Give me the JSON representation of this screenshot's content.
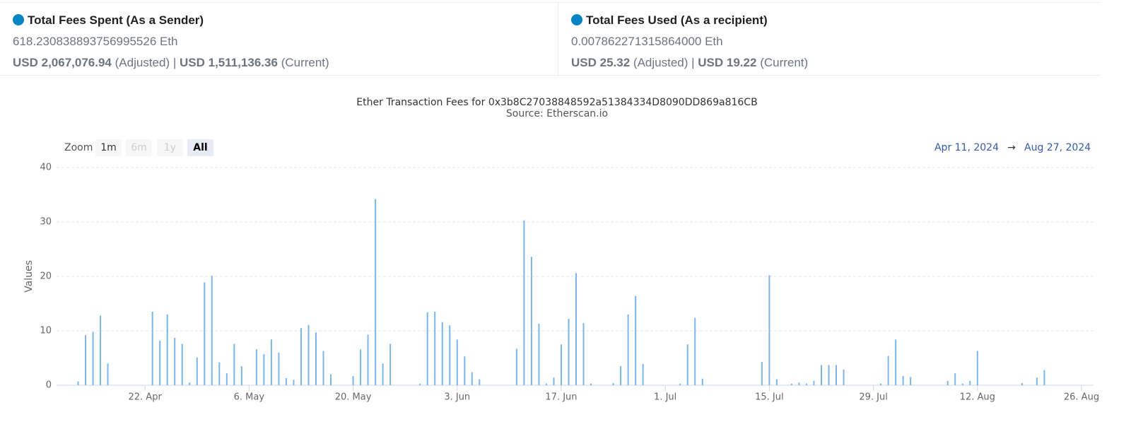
{
  "header": {
    "cards": [
      {
        "title": "Total Fees Spent (As a Sender)",
        "eth": "618.230838893756995526 Eth",
        "usd_adjusted": "USD 2,067,076.94",
        "adjusted_label": "(Adjusted)",
        "separator": "|",
        "usd_current": "USD 1,511,136.36",
        "current_label": "(Current)"
      },
      {
        "title": "Total Fees Used (As a recipient)",
        "eth": "0.007862271315864000 Eth",
        "usd_adjusted": "USD 25.32",
        "adjusted_label": "(Adjusted)",
        "separator": "|",
        "usd_current": "USD 19.22",
        "current_label": "(Current)"
      }
    ]
  },
  "controls": {
    "zoom_label": "Zoom",
    "buttons": [
      "1m",
      "6m",
      "1y",
      "All"
    ],
    "range_from": "Apr 11, 2024",
    "range_arrow": "→",
    "range_to": "Aug 27, 2024"
  },
  "chart_data": {
    "type": "bar",
    "title": "Ether Transaction Fees for 0x3b8C27038848592a51384334D8090DD869a816CB",
    "subtitle": "Source: Etherscan.io",
    "y_label": "Values",
    "color": "#7cb5ec",
    "grid": true,
    "x": [
      "2024-04-13",
      "2024-04-14",
      "2024-04-15",
      "2024-04-16",
      "2024-04-17",
      "2024-04-23",
      "2024-04-24",
      "2024-04-25",
      "2024-04-26",
      "2024-04-27",
      "2024-04-28",
      "2024-04-29",
      "2024-04-30",
      "2024-05-01",
      "2024-05-02",
      "2024-05-03",
      "2024-05-04",
      "2024-05-05",
      "2024-05-07",
      "2024-05-08",
      "2024-05-09",
      "2024-05-10",
      "2024-05-11",
      "2024-05-12",
      "2024-05-13",
      "2024-05-14",
      "2024-05-15",
      "2024-05-16",
      "2024-05-17",
      "2024-05-20",
      "2024-05-21",
      "2024-05-22",
      "2024-05-23",
      "2024-05-24",
      "2024-05-25",
      "2024-05-29",
      "2024-05-30",
      "2024-05-31",
      "2024-06-01",
      "2024-06-02",
      "2024-06-03",
      "2024-06-04",
      "2024-06-05",
      "2024-06-06",
      "2024-06-11",
      "2024-06-12",
      "2024-06-13",
      "2024-06-14",
      "2024-06-15",
      "2024-06-16",
      "2024-06-17",
      "2024-06-18",
      "2024-06-19",
      "2024-06-20",
      "2024-06-21",
      "2024-06-24",
      "2024-06-25",
      "2024-06-26",
      "2024-06-27",
      "2024-06-28",
      "2024-07-03",
      "2024-07-04",
      "2024-07-05",
      "2024-07-06",
      "2024-07-14",
      "2024-07-15",
      "2024-07-16",
      "2024-07-18",
      "2024-07-19",
      "2024-07-20",
      "2024-07-21",
      "2024-07-22",
      "2024-07-23",
      "2024-07-24",
      "2024-07-25",
      "2024-07-30",
      "2024-07-31",
      "2024-08-01",
      "2024-08-02",
      "2024-08-03",
      "2024-08-08",
      "2024-08-09",
      "2024-08-10",
      "2024-08-11",
      "2024-08-12",
      "2024-08-18",
      "2024-08-20",
      "2024-08-21"
    ],
    "values": [
      0.7,
      9.2,
      9.8,
      12.8,
      4.0,
      13.5,
      8.2,
      13.0,
      8.7,
      7.6,
      0.5,
      5.1,
      18.9,
      20.1,
      4.2,
      2.2,
      7.6,
      3.5,
      6.6,
      5.7,
      8.4,
      6.0,
      1.3,
      1.0,
      10.5,
      11.1,
      9.7,
      6.3,
      2.0,
      1.7,
      6.6,
      9.3,
      34.2,
      4.0,
      7.6,
      0.3,
      13.4,
      13.5,
      11.6,
      11.0,
      8.4,
      5.3,
      2.4,
      1.1,
      6.7,
      30.3,
      23.6,
      11.3,
      0.3,
      1.4,
      7.5,
      12.2,
      20.6,
      11.4,
      0.3,
      0.4,
      3.5,
      13.0,
      16.4,
      3.9,
      0.3,
      7.5,
      12.4,
      1.2,
      4.3,
      20.2,
      1.1,
      0.3,
      0.5,
      0.3,
      0.8,
      3.7,
      3.7,
      3.7,
      2.9,
      0.3,
      5.4,
      8.4,
      1.7,
      1.5,
      0.8,
      2.2,
      0.3,
      0.8,
      6.3,
      0.4,
      1.4,
      2.8
    ],
    "xlim": [
      "2024-04-11",
      "2024-08-27"
    ],
    "xticks": [
      {
        "value": "2024-04-22",
        "label": "22. Apr"
      },
      {
        "value": "2024-05-06",
        "label": "6. May"
      },
      {
        "value": "2024-05-20",
        "label": "20. May"
      },
      {
        "value": "2024-06-03",
        "label": "3. Jun"
      },
      {
        "value": "2024-06-17",
        "label": "17. Jun"
      },
      {
        "value": "2024-07-01",
        "label": "1. Jul"
      },
      {
        "value": "2024-07-15",
        "label": "15. Jul"
      },
      {
        "value": "2024-07-29",
        "label": "29. Jul"
      },
      {
        "value": "2024-08-12",
        "label": "12. Aug"
      },
      {
        "value": "2024-08-26",
        "label": "26. Aug"
      }
    ],
    "ylim": [
      0,
      40
    ],
    "yticks": [
      0,
      10,
      20,
      30,
      40
    ]
  }
}
